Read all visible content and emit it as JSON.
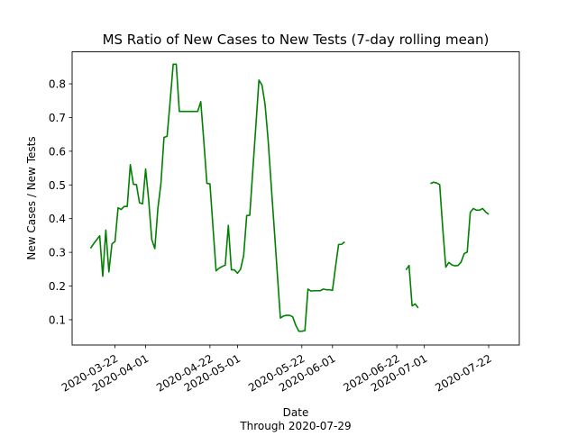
{
  "chart_data": {
    "type": "line",
    "title": "MS Ratio of New Cases to New Tests (7-day rolling mean)",
    "xlabel": "Date",
    "xlabel_sub": "Through 2020-07-29",
    "ylabel": "New Cases / New Tests",
    "xlim": [
      "2020-03-08",
      "2020-08-01"
    ],
    "ylim": [
      0.025,
      0.895
    ],
    "x_ticks": [
      "2020-03-22",
      "2020-04-01",
      "2020-04-22",
      "2020-05-01",
      "2020-05-22",
      "2020-06-01",
      "2020-06-22",
      "2020-07-01",
      "2020-07-22"
    ],
    "y_ticks": [
      "0.1",
      "0.2",
      "0.3",
      "0.4",
      "0.5",
      "0.6",
      "0.7",
      "0.8"
    ],
    "y_tick_values": [
      0.1,
      0.2,
      0.3,
      0.4,
      0.5,
      0.6,
      0.7,
      0.8
    ],
    "grid": false,
    "color": "#008000",
    "series": [
      {
        "segments": [
          [
            [
              "2020-03-14",
              0.312
            ],
            [
              "2020-03-15",
              0.325
            ],
            [
              "2020-03-16",
              0.337
            ],
            [
              "2020-03-17",
              0.349
            ],
            [
              "2020-03-18",
              0.229
            ],
            [
              "2020-03-19",
              0.366
            ],
            [
              "2020-03-20",
              0.242
            ],
            [
              "2020-03-21",
              0.325
            ],
            [
              "2020-03-22",
              0.332
            ],
            [
              "2020-03-23",
              0.432
            ],
            [
              "2020-03-24",
              0.427
            ],
            [
              "2020-03-25",
              0.436
            ],
            [
              "2020-03-26",
              0.436
            ],
            [
              "2020-03-27",
              0.56
            ],
            [
              "2020-03-28",
              0.502
            ],
            [
              "2020-03-29",
              0.501
            ],
            [
              "2020-03-30",
              0.447
            ],
            [
              "2020-03-31",
              0.444
            ],
            [
              "2020-04-01",
              0.547
            ],
            [
              "2020-04-02",
              0.455
            ],
            [
              "2020-04-03",
              0.338
            ],
            [
              "2020-04-04",
              0.311
            ],
            [
              "2020-04-05",
              0.43
            ],
            [
              "2020-04-06",
              0.505
            ],
            [
              "2020-04-07",
              0.641
            ],
            [
              "2020-04-08",
              0.644
            ],
            [
              "2020-04-09",
              0.748
            ],
            [
              "2020-04-10",
              0.858
            ],
            [
              "2020-04-11",
              0.858
            ],
            [
              "2020-04-12",
              0.718
            ],
            [
              "2020-04-13",
              0.718
            ],
            [
              "2020-04-14",
              0.718
            ],
            [
              "2020-04-15",
              0.718
            ],
            [
              "2020-04-16",
              0.718
            ],
            [
              "2020-04-17",
              0.718
            ],
            [
              "2020-04-18",
              0.718
            ],
            [
              "2020-04-19",
              0.747
            ],
            [
              "2020-04-20",
              0.63
            ],
            [
              "2020-04-21",
              0.505
            ],
            [
              "2020-04-22",
              0.503
            ],
            [
              "2020-04-23",
              0.374
            ],
            [
              "2020-04-24",
              0.245
            ],
            [
              "2020-04-25",
              0.253
            ],
            [
              "2020-04-26",
              0.258
            ],
            [
              "2020-04-27",
              0.262
            ],
            [
              "2020-04-28",
              0.38
            ],
            [
              "2020-04-29",
              0.248
            ],
            [
              "2020-04-30",
              0.248
            ],
            [
              "2020-05-01",
              0.238
            ],
            [
              "2020-05-02",
              0.25
            ],
            [
              "2020-05-03",
              0.29
            ],
            [
              "2020-05-04",
              0.409
            ],
            [
              "2020-05-05",
              0.41
            ],
            [
              "2020-05-06",
              0.545
            ],
            [
              "2020-05-07",
              0.677
            ],
            [
              "2020-05-08",
              0.811
            ],
            [
              "2020-05-09",
              0.796
            ],
            [
              "2020-05-10",
              0.738
            ],
            [
              "2020-05-11",
              0.633
            ],
            [
              "2020-05-12",
              0.499
            ],
            [
              "2020-05-13",
              0.369
            ],
            [
              "2020-05-14",
              0.236
            ],
            [
              "2020-05-15",
              0.105
            ],
            [
              "2020-05-16",
              0.111
            ],
            [
              "2020-05-17",
              0.113
            ],
            [
              "2020-05-18",
              0.113
            ],
            [
              "2020-05-19",
              0.109
            ],
            [
              "2020-05-20",
              0.084
            ],
            [
              "2020-05-21",
              0.066
            ],
            [
              "2020-05-22",
              0.066
            ],
            [
              "2020-05-23",
              0.068
            ],
            [
              "2020-05-24",
              0.191
            ],
            [
              "2020-05-25",
              0.185
            ],
            [
              "2020-05-26",
              0.186
            ],
            [
              "2020-05-27",
              0.186
            ],
            [
              "2020-05-28",
              0.186
            ],
            [
              "2020-05-29",
              0.191
            ],
            [
              "2020-05-30",
              0.189
            ],
            [
              "2020-05-31",
              0.189
            ],
            [
              "2020-06-01",
              0.187
            ],
            [
              "2020-06-02",
              0.257
            ],
            [
              "2020-06-03",
              0.323
            ],
            [
              "2020-06-04",
              0.324
            ],
            [
              "2020-06-05",
              0.331
            ]
          ],
          [
            [
              "2020-06-25",
              0.248
            ],
            [
              "2020-06-26",
              0.261
            ],
            [
              "2020-06-27",
              0.141
            ],
            [
              "2020-06-28",
              0.147
            ],
            [
              "2020-06-29",
              0.135
            ]
          ],
          [
            [
              "2020-07-03",
              0.504
            ],
            [
              "2020-07-04",
              0.508
            ],
            [
              "2020-07-05",
              0.506
            ],
            [
              "2020-07-06",
              0.501
            ],
            [
              "2020-07-07",
              0.372
            ],
            [
              "2020-07-08",
              0.256
            ],
            [
              "2020-07-09",
              0.27
            ],
            [
              "2020-07-10",
              0.263
            ],
            [
              "2020-07-11",
              0.26
            ],
            [
              "2020-07-12",
              0.261
            ],
            [
              "2020-07-13",
              0.271
            ],
            [
              "2020-07-14",
              0.296
            ],
            [
              "2020-07-15",
              0.301
            ],
            [
              "2020-07-16",
              0.419
            ],
            [
              "2020-07-17",
              0.43
            ],
            [
              "2020-07-18",
              0.425
            ],
            [
              "2020-07-19",
              0.425
            ],
            [
              "2020-07-20",
              0.43
            ],
            [
              "2020-07-21",
              0.42
            ],
            [
              "2020-07-22",
              0.413
            ]
          ]
        ]
      }
    ]
  }
}
